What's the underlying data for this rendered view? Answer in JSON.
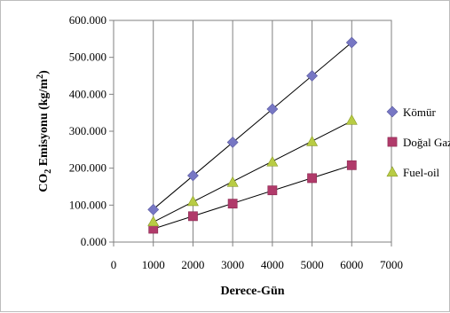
{
  "chart_data": {
    "type": "scatter",
    "xlabel": "Derece-Gün",
    "ylabel_parts": [
      "CO",
      "2",
      " Emisyonu (kg/m",
      "2",
      ")"
    ],
    "xlim": [
      0,
      7000
    ],
    "ylim": [
      0,
      600
    ],
    "x_ticks": [
      0,
      1000,
      2000,
      3000,
      4000,
      5000,
      6000,
      7000
    ],
    "x_tick_labels": [
      "0",
      "1000",
      "2000",
      "3000",
      "4000",
      "5000",
      "6000",
      "7000"
    ],
    "y_ticks": [
      0,
      100,
      200,
      300,
      400,
      500,
      600
    ],
    "y_tick_labels": [
      "0.000",
      "100.000",
      "200.000",
      "300.000",
      "400.000",
      "500.000",
      "600.000"
    ],
    "grid": "vertical",
    "trendlines": true,
    "legend_position": "right",
    "series": [
      {
        "name": "Kömür",
        "marker": "diamond",
        "color": "#7777c4",
        "x": [
          1000,
          2000,
          3000,
          4000,
          5000,
          6000
        ],
        "y": [
          88,
          180,
          270,
          360,
          450,
          540
        ]
      },
      {
        "name": "Doğal Gaz",
        "marker": "square",
        "color": "#b03a6a",
        "x": [
          1000,
          2000,
          3000,
          4000,
          5000,
          6000
        ],
        "y": [
          36,
          70,
          104,
          140,
          173,
          208
        ]
      },
      {
        "name": "Fuel-oil",
        "marker": "triangle",
        "color": "#b8cc44",
        "x": [
          1000,
          2000,
          3000,
          4000,
          5000,
          6000
        ],
        "y": [
          55,
          110,
          162,
          217,
          272,
          330
        ]
      }
    ]
  }
}
